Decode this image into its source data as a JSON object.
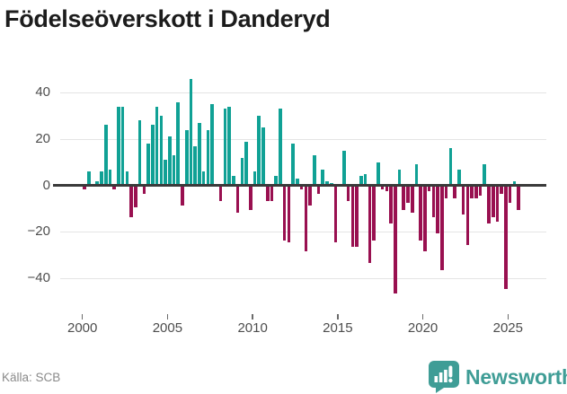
{
  "title": "Födelseöverskott i Danderyd",
  "source": "Källa: SCB",
  "logo": {
    "text": "Newsworthy"
  },
  "colors": {
    "positive": "#10a195",
    "negative": "#991050",
    "axis": "#3a3a3a",
    "grid": "#e4e4e4",
    "tick_label": "#4d4d4d",
    "source_text": "#8a8a8a",
    "logo_teal": "#3f9d96",
    "title_text": "#1c1c1c",
    "background": "#ffffff"
  },
  "chart_data": {
    "type": "bar",
    "title": "Födelseöverskott i Danderyd",
    "frequency": "quarterly",
    "start_year": 2000,
    "start_quarter": 1,
    "end_year": 2025,
    "end_quarter": 3,
    "xlabel": "",
    "ylabel": "",
    "grid": "horizontal",
    "legend": "none",
    "ylim": [
      -53,
      47
    ],
    "y_ticks": [
      40,
      20,
      0,
      -20,
      -40
    ],
    "y_tick_labels": [
      "40",
      "20",
      "0",
      "−20",
      "−40"
    ],
    "x_tick_years": [
      2000,
      2005,
      2010,
      2015,
      2020,
      2025
    ],
    "x_tick_labels": [
      "2000",
      "2005",
      "2010",
      "2015",
      "2020",
      "2025"
    ],
    "values": [
      -1,
      6,
      0,
      2,
      6,
      26,
      7,
      -1,
      34,
      34,
      6,
      -13,
      -9,
      28,
      -3,
      18,
      26,
      34,
      30,
      11,
      21,
      13,
      36,
      -8,
      24,
      46,
      17,
      27,
      6,
      24,
      35,
      0,
      -6,
      33,
      34,
      4,
      -11,
      12,
      19,
      -10,
      6,
      30,
      25,
      -6,
      -6,
      4,
      33,
      -23,
      -24,
      18,
      3,
      -1,
      -28,
      -8,
      13,
      -3,
      7,
      2,
      1,
      -24,
      0,
      15,
      -6,
      -26,
      -26,
      4,
      5,
      -33,
      -23,
      10,
      -1,
      -2,
      -16,
      -46,
      7,
      -10,
      -7,
      -11,
      9,
      -23,
      -28,
      -2,
      -13,
      -20,
      -36,
      -5,
      16,
      -5,
      7,
      -12,
      -25,
      -5,
      -5,
      -4,
      9,
      -16,
      -13,
      -15,
      -3,
      -44,
      -7,
      2,
      -10
    ]
  }
}
